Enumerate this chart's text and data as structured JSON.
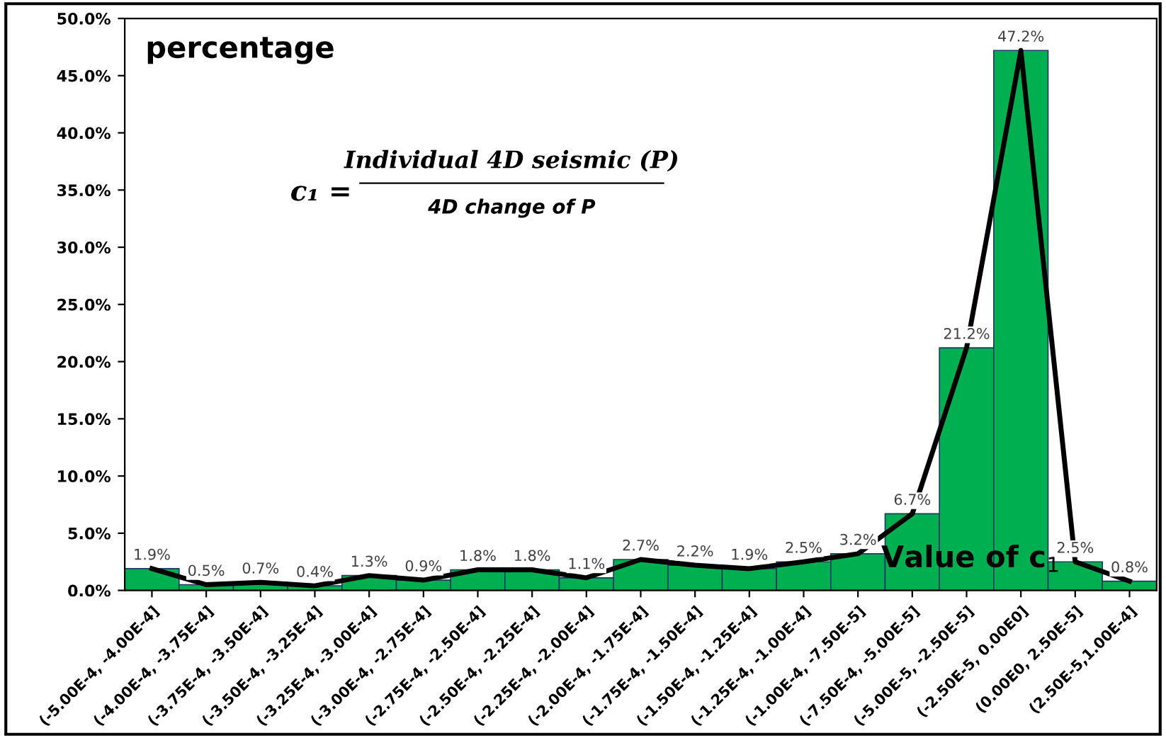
{
  "chart_data": {
    "type": "bar",
    "ylabel": "percentage",
    "xlabel": "Value of c$_{1}$",
    "annotations": [
      "c₁ =",
      "Individual 4D seismic (P)",
      "4D change of P"
    ],
    "categories": [
      "(-5.00E-4, -4.00E-4]",
      "(-4.00E-4, -3.75E-4]",
      "(-3.75E-4, -3.50E-4]",
      "(-3.50E-4, -3.25E-4]",
      "(-3.25E-4, -3.00E-4]",
      "(-3.00E-4, -2.75E-4]",
      "(-2.75E-4, -2.50E-4]",
      "(-2.50E-4, -2.25E-4]",
      "(-2.25E-4, -2.00E-4]",
      "(-2.00E-4, -1.75E-4]",
      "(-1.75E-4, -1.50E-4]",
      "(-1.50E-4, -1.25E-4]",
      "(-1.25E-4, -1.00E-4]",
      "(-1.00E-4, -7.50E-5]",
      "(-7.50E-4, -5.00E-5]",
      "(-5.00E-5, -2.50E-5]",
      "(-2.50E-5, 0.00E0]",
      "(0.00E0, 2.50E-5]",
      "(2.50E-5,1.00E-4]"
    ],
    "series": [
      {
        "color": "#00b050",
        "values": [
          1.9,
          0.5,
          0.7,
          0.4,
          1.3,
          0.9,
          1.8,
          1.8,
          1.1,
          2.7,
          2.2,
          1.9,
          2.5,
          3.2,
          6.7,
          21.2,
          47.2,
          2.5,
          0.8
        ],
        "value_labels": [
          "1.9%",
          "0.5%",
          "0.7%",
          "0.4%",
          "1.3%",
          "0.9%",
          "1.8%",
          "1.8%",
          "1.1%",
          "2.7%",
          "2.2%",
          "1.9%",
          "2.5%",
          "3.2%",
          "6.7%",
          "21.2%",
          "47.2%",
          "2.5%",
          "0.8%"
        ]
      },
      {
        "type": "line",
        "color": "#000000",
        "values": [
          1.9,
          0.5,
          0.7,
          0.4,
          1.3,
          0.9,
          1.8,
          1.8,
          1.1,
          2.7,
          2.2,
          1.9,
          2.5,
          3.2,
          6.7,
          21.2,
          47.2,
          2.5,
          0.8
        ]
      }
    ],
    "ylim": [
      0,
      50
    ],
    "yticks": [
      {
        "value": 0,
        "label": "0.0%"
      },
      {
        "value": 5,
        "label": "5.0%"
      },
      {
        "value": 10,
        "label": "10.0%"
      },
      {
        "value": 15,
        "label": "15.0%"
      },
      {
        "value": 20,
        "label": "20.0%"
      },
      {
        "value": 25,
        "label": "25.0%"
      },
      {
        "value": 30,
        "label": "30.0%"
      },
      {
        "value": 35,
        "label": "35.0%"
      },
      {
        "value": 40,
        "label": "40.0%"
      },
      {
        "value": 45,
        "label": "45.0%"
      },
      {
        "value": 50,
        "label": "50.0%"
      }
    ],
    "grid": false,
    "marker": "none",
    "line_style": "solid"
  }
}
